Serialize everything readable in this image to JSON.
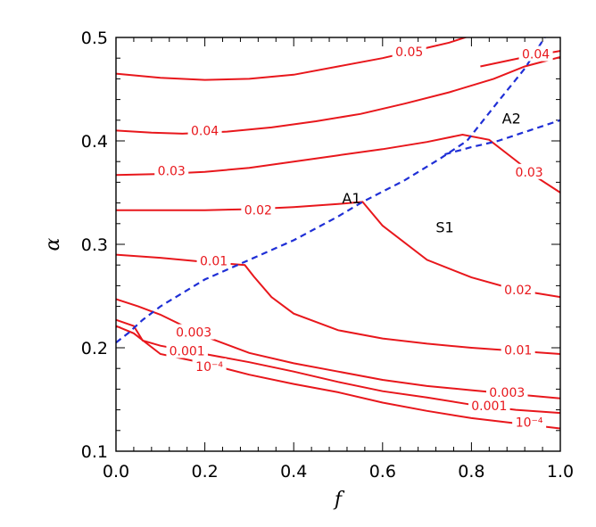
{
  "chart_data": {
    "type": "line",
    "title": "",
    "xlabel": "f",
    "ylabel": "α",
    "xlim": [
      0.0,
      1.0
    ],
    "ylim": [
      0.1,
      0.5
    ],
    "x_ticks": [
      0.0,
      0.2,
      0.4,
      0.6,
      0.8,
      1.0
    ],
    "x_tick_labels": [
      "0.0",
      "0.2",
      "0.4",
      "0.6",
      "0.8",
      "1.0"
    ],
    "y_ticks": [
      0.1,
      0.2,
      0.3,
      0.4,
      0.5
    ],
    "y_tick_labels": [
      "0.1",
      "0.2",
      "0.3",
      "0.4",
      "0.5"
    ],
    "grid": false,
    "colors": {
      "contour": "#e8171c",
      "boundary": "#1f2fd6",
      "axis": "#000000"
    },
    "region_labels": [
      {
        "text": "A1",
        "x": 0.53,
        "y": 0.345
      },
      {
        "text": "A2",
        "x": 0.89,
        "y": 0.422
      },
      {
        "text": "S1",
        "x": 0.74,
        "y": 0.317
      }
    ],
    "boundaries": [
      {
        "name": "",
        "style": "dashed",
        "points": [
          [
            0.0,
            0.205
          ],
          [
            0.03,
            0.215
          ],
          [
            0.06,
            0.227
          ],
          [
            0.1,
            0.24
          ],
          [
            0.2,
            0.266
          ],
          [
            0.3,
            0.285
          ],
          [
            0.4,
            0.304
          ],
          [
            0.5,
            0.327
          ],
          [
            0.555,
            0.341
          ],
          [
            0.65,
            0.362
          ],
          [
            0.73,
            0.383
          ],
          [
            0.79,
            0.4
          ],
          [
            0.86,
            0.438
          ],
          [
            0.92,
            0.47
          ],
          [
            0.98,
            0.51
          ]
        ]
      },
      {
        "name": "",
        "style": "dashed",
        "points": [
          [
            0.74,
            0.387
          ],
          [
            0.8,
            0.394
          ],
          [
            0.86,
            0.4
          ],
          [
            0.93,
            0.41
          ],
          [
            1.0,
            0.42
          ]
        ]
      }
    ],
    "series": [
      {
        "label": "0.05",
        "points": [
          [
            0.0,
            0.465
          ],
          [
            0.1,
            0.461
          ],
          [
            0.2,
            0.459
          ],
          [
            0.3,
            0.46
          ],
          [
            0.4,
            0.464
          ],
          [
            0.5,
            0.472
          ],
          [
            0.6,
            0.48
          ],
          [
            0.7,
            0.49
          ],
          [
            0.75,
            0.495
          ],
          [
            0.8,
            0.502
          ]
        ],
        "label_at": [
          0.66,
          0.486
        ]
      },
      {
        "label": "0.04",
        "points": [
          [
            0.0,
            0.41
          ],
          [
            0.08,
            0.408
          ],
          [
            0.15,
            0.407
          ],
          [
            0.25,
            0.409
          ],
          [
            0.35,
            0.413
          ],
          [
            0.45,
            0.419
          ],
          [
            0.55,
            0.426
          ],
          [
            0.65,
            0.436
          ],
          [
            0.75,
            0.447
          ],
          [
            0.85,
            0.46
          ],
          [
            0.92,
            0.472
          ],
          [
            1.0,
            0.481
          ]
        ],
        "label_at": [
          0.2,
          0.41
        ]
      },
      {
        "label": "0.04",
        "points": [
          [
            0.82,
            0.472
          ],
          [
            0.92,
            0.481
          ],
          [
            1.0,
            0.487
          ]
        ],
        "label_at": [
          0.945,
          0.484
        ]
      },
      {
        "label": "0.03",
        "points": [
          [
            0.0,
            0.367
          ],
          [
            0.1,
            0.368
          ],
          [
            0.2,
            0.37
          ],
          [
            0.3,
            0.374
          ],
          [
            0.4,
            0.38
          ],
          [
            0.5,
            0.386
          ],
          [
            0.6,
            0.392
          ],
          [
            0.7,
            0.399
          ],
          [
            0.78,
            0.406
          ],
          [
            0.84,
            0.401
          ],
          [
            0.9,
            0.381
          ],
          [
            0.95,
            0.364
          ],
          [
            1.0,
            0.35
          ]
        ],
        "label_at": [
          0.125,
          0.371
        ]
      },
      {
        "label": "0.03",
        "points": [],
        "label_at": [
          0.93,
          0.37
        ]
      },
      {
        "label": "0.02",
        "points": [
          [
            0.0,
            0.333
          ],
          [
            0.1,
            0.333
          ],
          [
            0.2,
            0.333
          ],
          [
            0.3,
            0.334
          ],
          [
            0.4,
            0.336
          ],
          [
            0.5,
            0.339
          ],
          [
            0.555,
            0.341
          ],
          [
            0.6,
            0.318
          ],
          [
            0.7,
            0.285
          ],
          [
            0.8,
            0.268
          ],
          [
            0.9,
            0.256
          ],
          [
            1.0,
            0.249
          ]
        ],
        "label_at": [
          0.32,
          0.333
        ]
      },
      {
        "label": "0.02",
        "points": [],
        "label_at": [
          0.905,
          0.256
        ]
      },
      {
        "label": "0.01",
        "points": [
          [
            0.0,
            0.29
          ],
          [
            0.1,
            0.287
          ],
          [
            0.2,
            0.283
          ],
          [
            0.29,
            0.28
          ],
          [
            0.31,
            0.269
          ],
          [
            0.35,
            0.249
          ],
          [
            0.4,
            0.233
          ],
          [
            0.5,
            0.217
          ],
          [
            0.6,
            0.209
          ],
          [
            0.7,
            0.204
          ],
          [
            0.8,
            0.2
          ],
          [
            0.9,
            0.197
          ],
          [
            1.0,
            0.194
          ]
        ],
        "label_at": [
          0.22,
          0.284
        ]
      },
      {
        "label": "0.01",
        "points": [],
        "label_at": [
          0.905,
          0.198
        ]
      },
      {
        "label": "0.003",
        "points": [
          [
            0.0,
            0.247
          ],
          [
            0.05,
            0.24
          ],
          [
            0.1,
            0.232
          ],
          [
            0.2,
            0.211
          ],
          [
            0.3,
            0.195
          ],
          [
            0.4,
            0.185
          ],
          [
            0.5,
            0.177
          ],
          [
            0.6,
            0.169
          ],
          [
            0.7,
            0.163
          ],
          [
            0.8,
            0.159
          ],
          [
            0.9,
            0.155
          ],
          [
            1.0,
            0.151
          ]
        ],
        "label_at": [
          0.175,
          0.215
        ]
      },
      {
        "label": "0.003",
        "points": [],
        "label_at": [
          0.88,
          0.157
        ]
      },
      {
        "label": "0.001",
        "points": [
          [
            0.0,
            0.227
          ],
          [
            0.04,
            0.221
          ],
          [
            0.06,
            0.207
          ],
          [
            0.1,
            0.202
          ],
          [
            0.2,
            0.194
          ],
          [
            0.3,
            0.186
          ],
          [
            0.4,
            0.177
          ],
          [
            0.5,
            0.167
          ],
          [
            0.6,
            0.158
          ],
          [
            0.7,
            0.152
          ],
          [
            0.8,
            0.145
          ],
          [
            0.9,
            0.14
          ],
          [
            1.0,
            0.137
          ]
        ],
        "label_at": [
          0.16,
          0.197
        ]
      },
      {
        "label": "0.001",
        "points": [],
        "label_at": [
          0.84,
          0.144
        ]
      },
      {
        "label": "10⁻⁴",
        "points": [
          [
            0.0,
            0.221
          ],
          [
            0.04,
            0.214
          ],
          [
            0.1,
            0.194
          ],
          [
            0.2,
            0.185
          ],
          [
            0.3,
            0.174
          ],
          [
            0.4,
            0.165
          ],
          [
            0.5,
            0.157
          ],
          [
            0.6,
            0.147
          ],
          [
            0.7,
            0.139
          ],
          [
            0.8,
            0.132
          ],
          [
            0.9,
            0.127
          ],
          [
            1.0,
            0.122
          ]
        ],
        "label_at": [
          0.21,
          0.182
        ]
      },
      {
        "label": "10⁻⁴",
        "points": [],
        "label_at": [
          0.93,
          0.128
        ]
      }
    ]
  }
}
